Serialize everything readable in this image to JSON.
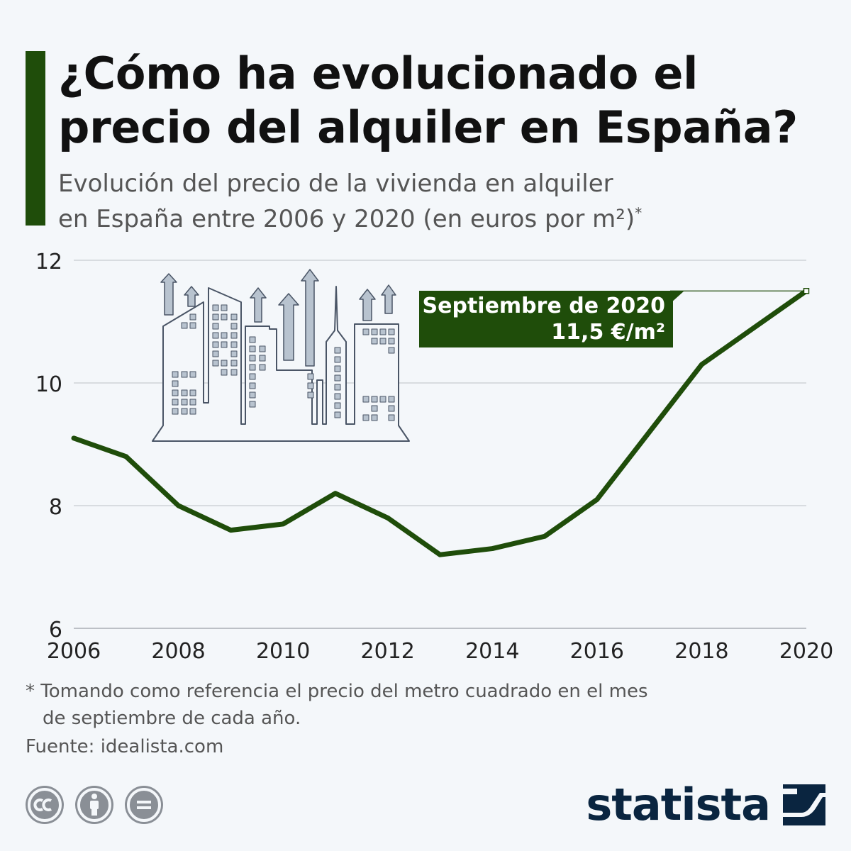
{
  "header": {
    "title_line1": "¿Cómo ha evolucionado el",
    "title_line2": "precio del alquiler en España?",
    "subtitle_line1": "Evolución del precio de la vivienda en alquiler",
    "subtitle_line2": "en España entre 2006 y 2020 (en euros por m²)",
    "subtitle_mark": "*"
  },
  "colors": {
    "accent": "#1f4d0a",
    "line": "#1f4d0a",
    "grid": "#c8ccd0",
    "brand": "#0a2540",
    "illustration": "#4a5566"
  },
  "chart_data": {
    "type": "line",
    "x": [
      2006,
      2007,
      2008,
      2009,
      2010,
      2011,
      2012,
      2013,
      2014,
      2015,
      2016,
      2017,
      2018,
      2019,
      2020
    ],
    "series": [
      {
        "values": [
          9.1,
          8.8,
          8.0,
          7.6,
          7.7,
          8.2,
          7.8,
          7.2,
          7.3,
          7.5,
          8.1,
          9.2,
          10.3,
          10.9,
          11.5
        ]
      }
    ],
    "x_ticks": [
      "2006",
      "2008",
      "2010",
      "2012",
      "2014",
      "2016",
      "2018",
      "2020"
    ],
    "y_ticks": [
      "6",
      "8",
      "10",
      "12"
    ],
    "ylim": [
      6,
      12
    ],
    "xlim": [
      2006,
      2020
    ],
    "grid": "horizontal",
    "annotation": {
      "line1": "Septiembre de 2020",
      "line2": "11,5 €/m²",
      "x": 2020,
      "y": 11.5
    }
  },
  "footer": {
    "footnote_line1": "* Tomando como referencia el precio del metro cuadrado en el mes",
    "footnote_line2": "de septiembre de cada año.",
    "source": "Fuente: idealista.com",
    "brand": "statista",
    "license_icons": [
      "cc-icon",
      "attribution-icon",
      "no-derivatives-icon"
    ]
  }
}
